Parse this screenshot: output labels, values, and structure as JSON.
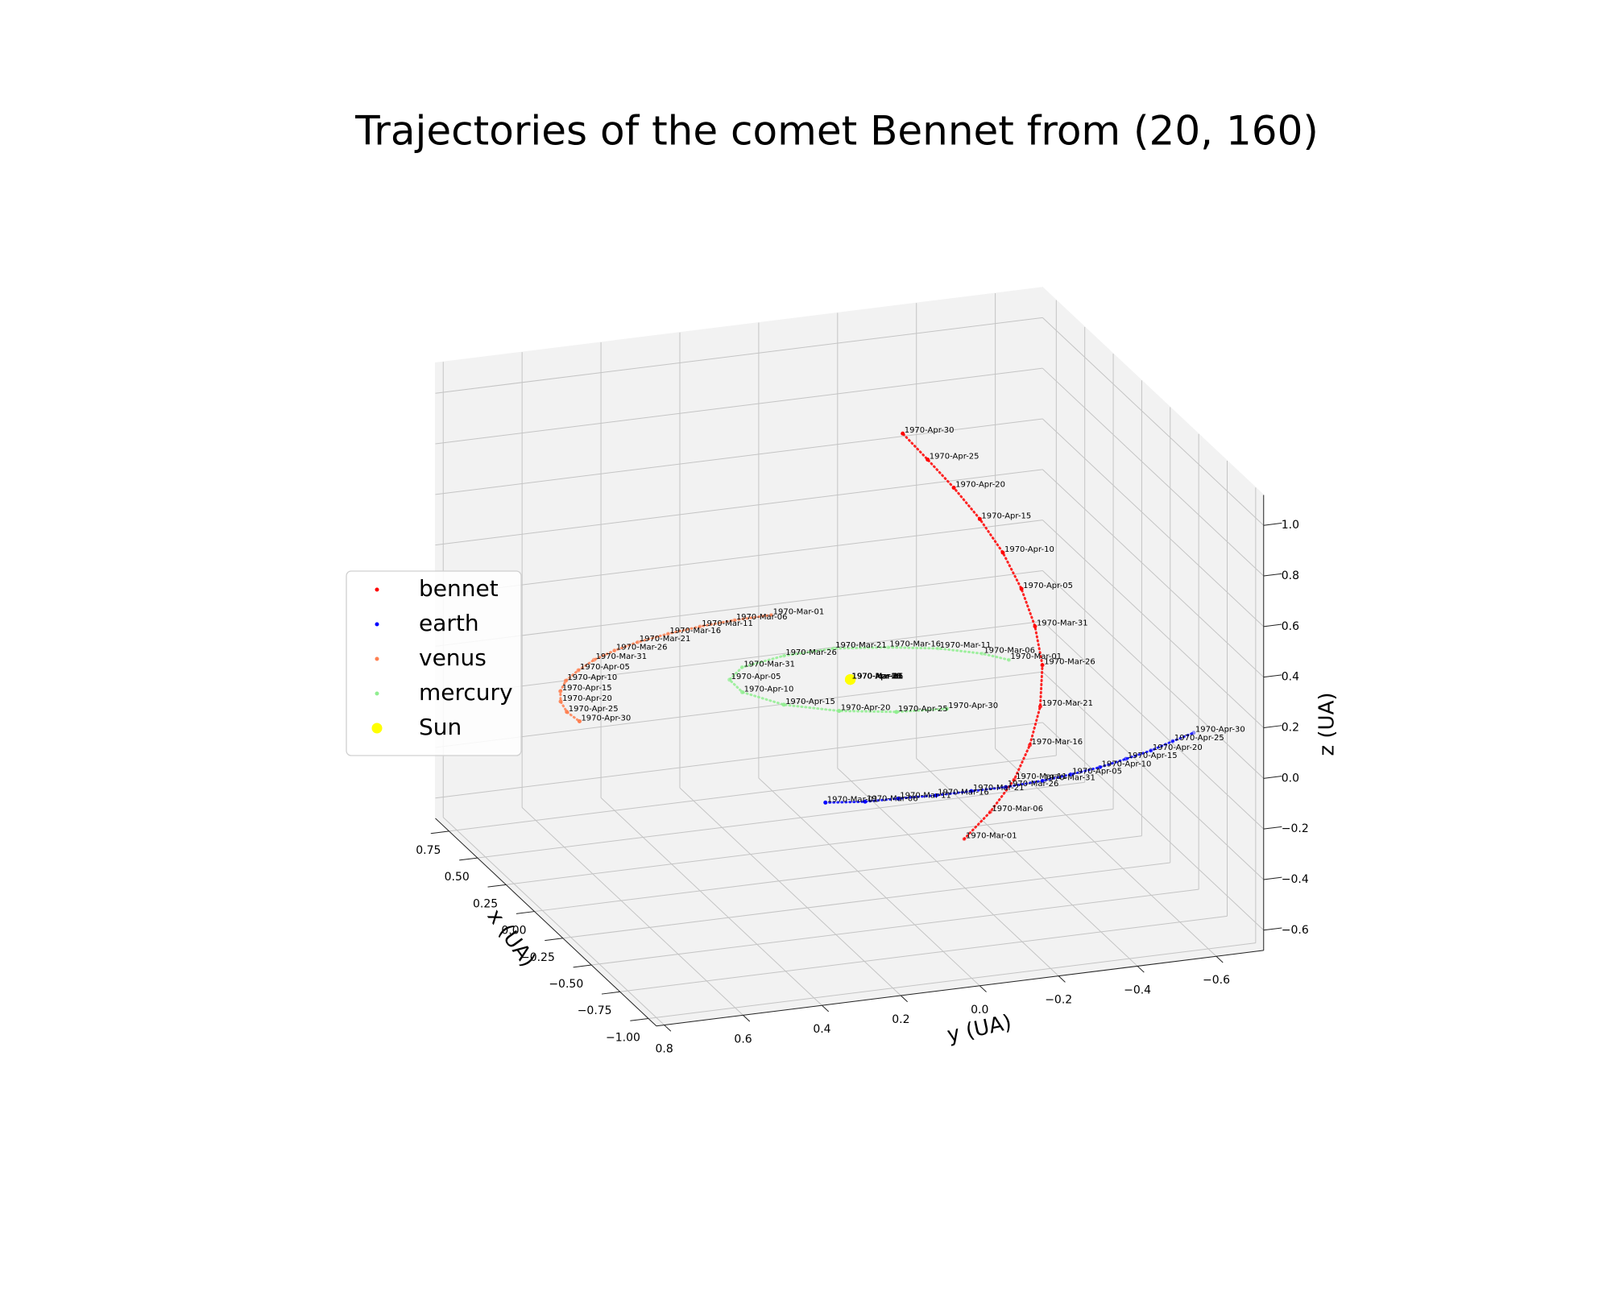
{
  "chart_data": {
    "type": "scatter3d",
    "title": "Trajectories of the comet Bennet from (20, 160)",
    "view": {
      "elev": 20,
      "azim": 160
    },
    "xlabel": "x (UA)",
    "ylabel": "y (UA)",
    "zlabel": "z (UA)",
    "dates": [
      "1970-Mar-01",
      "1970-Mar-06",
      "1970-Mar-11",
      "1970-Mar-16",
      "1970-Mar-21",
      "1970-Mar-26",
      "1970-Mar-31",
      "1970-Apr-05",
      "1970-Apr-10",
      "1970-Apr-15",
      "1970-Apr-20",
      "1970-Apr-25",
      "1970-Apr-30"
    ],
    "series": [
      {
        "name": "bennet",
        "color": "#ff0000",
        "marker_size": 2.5,
        "x": [
          -0.065,
          -0.121,
          -0.172,
          -0.205,
          -0.227,
          -0.232,
          -0.216,
          -0.187,
          -0.148,
          -0.098,
          -0.043,
          0.013,
          0.066
        ],
        "y": [
          -0.251,
          -0.301,
          -0.347,
          -0.377,
          -0.397,
          -0.401,
          -0.387,
          -0.361,
          -0.325,
          -0.281,
          -0.231,
          -0.181,
          -0.133
        ],
        "z": [
          -0.574,
          -0.453,
          -0.313,
          -0.168,
          -0.01,
          0.155,
          0.304,
          0.445,
          0.579,
          0.699,
          0.809,
          0.906,
          0.996
        ]
      },
      {
        "name": "earth",
        "color": "#0000ff",
        "marker_size": 2.5,
        "x": [
          -0.82,
          -0.853,
          -0.861,
          -0.874,
          -0.875,
          -0.877,
          -0.863,
          -0.84,
          -0.81,
          -0.768,
          -0.725,
          -0.67,
          -0.622
        ],
        "y": [
          0.319,
          0.228,
          0.146,
          0.054,
          -0.035,
          -0.122,
          -0.219,
          -0.297,
          -0.38,
          -0.458,
          -0.534,
          -0.605,
          -0.672
        ],
        "z": [
          0,
          0,
          0,
          0,
          0,
          0,
          0,
          0,
          0,
          0,
          0,
          0,
          0
        ]
      },
      {
        "name": "venus",
        "color": "#ff7f50",
        "marker_size": 2.5,
        "x": [
          0.783,
          0.778,
          0.761,
          0.734,
          0.696,
          0.651,
          0.595,
          0.525,
          0.452,
          0.371,
          0.286,
          0.193,
          0.103
        ],
        "y": [
          -0.007,
          0.088,
          0.18,
          0.269,
          0.357,
          0.429,
          0.497,
          0.557,
          0.61,
          0.647,
          0.671,
          0.682,
          0.676
        ],
        "z": [
          0,
          0,
          0,
          0,
          0,
          0,
          0,
          0,
          0,
          0,
          0,
          0,
          0
        ]
      },
      {
        "name": "mercury",
        "color": "#90ee90",
        "marker_size": 2.5,
        "x": [
          0.169,
          0.248,
          0.336,
          0.396,
          0.443,
          0.434,
          0.382,
          0.292,
          0.176,
          0.03,
          -0.078,
          -0.145,
          -0.171
        ],
        "y": [
          -0.432,
          -0.387,
          -0.301,
          -0.191,
          -0.067,
          0.062,
          0.183,
          0.241,
          0.242,
          0.179,
          0.07,
          -0.056,
          -0.176
        ],
        "z": [
          0,
          0,
          0,
          0,
          0,
          0,
          0,
          0,
          0,
          0,
          0,
          0,
          0
        ]
      },
      {
        "name": "Sun",
        "color": "#ffff00",
        "marker_size": 6.5,
        "x": [
          0.17,
          0.17,
          0.17,
          0.17,
          0.17,
          0.17,
          0.17,
          0.17,
          0.17,
          0.17,
          0.17,
          0.17,
          0.17
        ],
        "y": [
          -0.03,
          -0.03,
          -0.03,
          -0.03,
          -0.03,
          -0.03,
          -0.03,
          -0.03,
          -0.03,
          -0.03,
          -0.03,
          -0.03,
          -0.03
        ],
        "z": [
          0,
          0,
          0,
          0,
          0,
          0,
          0,
          0,
          0,
          0,
          0,
          0,
          0
        ]
      }
    ],
    "xlim": [
      -1.07,
      0.87
    ],
    "ylim": [
      -0.72,
      0.82
    ],
    "zlim": [
      -0.68,
      1.12
    ],
    "xticks": [
      0.75,
      {
        "value": 0.5,
        "label": "0.50"
      },
      0.25,
      {
        "value": 0,
        "label": "0.00"
      },
      {
        "value": -0.25,
        "label": "−0.25"
      },
      {
        "value": -0.5,
        "label": "−0.50"
      },
      {
        "value": -0.75,
        "label": "−0.75"
      },
      {
        "value": -1,
        "label": "−1.00"
      }
    ],
    "yticks": [
      0.8,
      0.6,
      0.4,
      0.2,
      {
        "value": 0,
        "label": "0.0"
      },
      {
        "value": -0.2,
        "label": "−0.2"
      },
      {
        "value": -0.4,
        "label": "−0.4"
      },
      {
        "value": -0.6,
        "label": "−0.6"
      }
    ],
    "zticks": [
      {
        "value": -0.6,
        "label": "−0.6"
      },
      {
        "value": -0.4,
        "label": "−0.4"
      },
      {
        "value": -0.2,
        "label": "−0.2"
      },
      {
        "value": 0,
        "label": "0.0"
      },
      0.2,
      0.4,
      0.6,
      0.8,
      {
        "value": 1,
        "label": "1.0"
      }
    ],
    "grid": true,
    "legend": "left"
  }
}
